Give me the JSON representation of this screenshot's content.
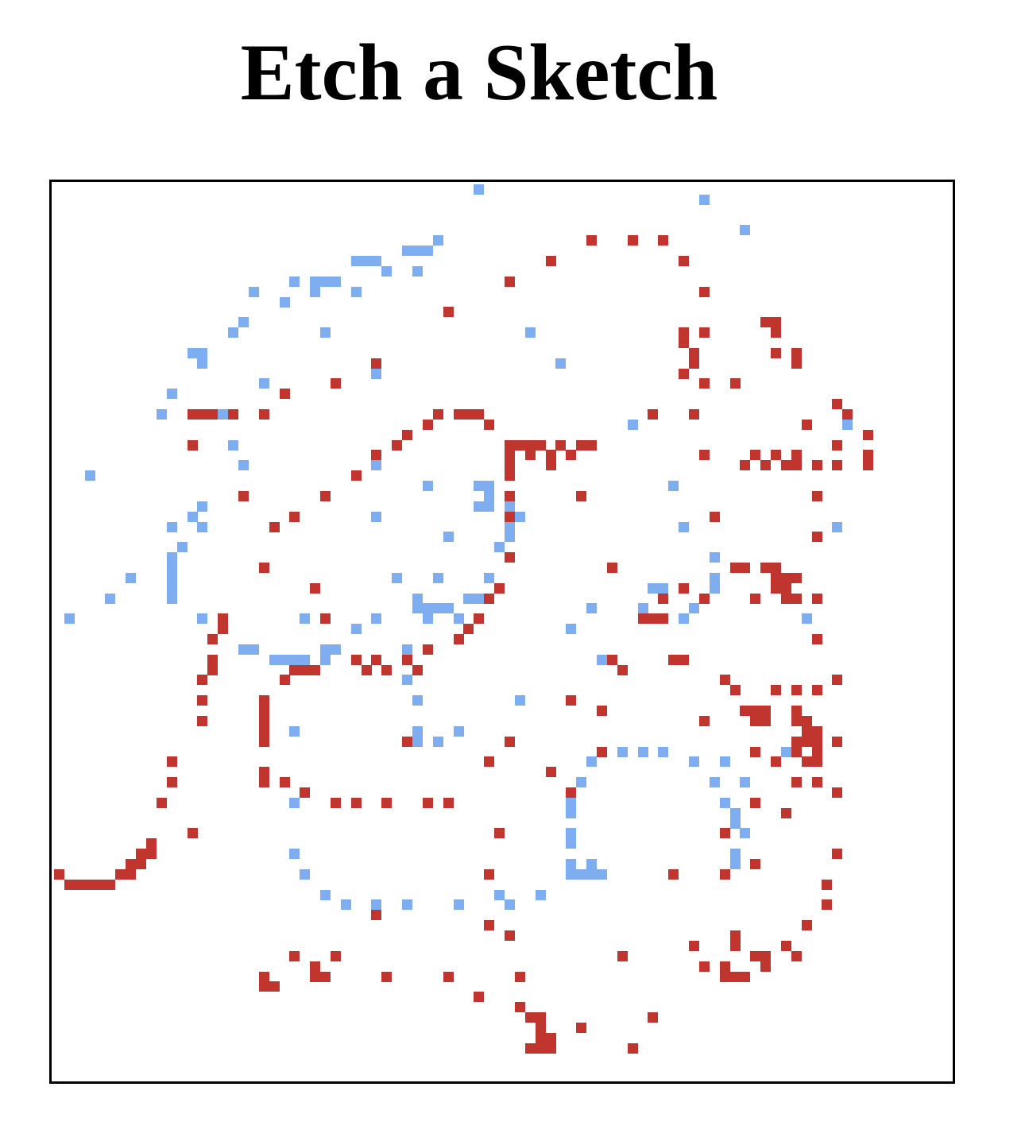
{
  "title": "Etch a Sketch",
  "grid": {
    "cols": 88,
    "rows": 88
  },
  "colors": {
    "red": "#c0352d",
    "blue": "#7eaef0",
    "board_background": "#ffffff",
    "board_border": "#000000"
  },
  "cells": {
    "blue": [
      [
        41,
        0
      ],
      [
        63,
        1
      ],
      [
        67,
        4
      ],
      [
        37,
        5
      ],
      [
        36,
        6
      ],
      [
        35,
        6
      ],
      [
        34,
        6
      ],
      [
        31,
        7
      ],
      [
        30,
        7
      ],
      [
        29,
        7
      ],
      [
        35,
        8
      ],
      [
        32,
        8
      ],
      [
        27,
        9
      ],
      [
        26,
        9
      ],
      [
        25,
        9
      ],
      [
        29,
        10
      ],
      [
        25,
        10
      ],
      [
        23,
        9
      ],
      [
        19,
        10
      ],
      [
        22,
        11
      ],
      [
        26,
        14
      ],
      [
        46,
        14
      ],
      [
        18,
        13
      ],
      [
        17,
        14
      ],
      [
        13,
        16
      ],
      [
        14,
        16
      ],
      [
        14,
        17
      ],
      [
        31,
        18
      ],
      [
        49,
        17
      ],
      [
        20,
        19
      ],
      [
        11,
        20
      ],
      [
        10,
        22
      ],
      [
        56,
        23
      ],
      [
        77,
        23
      ],
      [
        16,
        22
      ],
      [
        17,
        25
      ],
      [
        18,
        27
      ],
      [
        31,
        27
      ],
      [
        36,
        29
      ],
      [
        42,
        29
      ],
      [
        41,
        29
      ],
      [
        42,
        30
      ],
      [
        3,
        28
      ],
      [
        42,
        31
      ],
      [
        41,
        31
      ],
      [
        44,
        31
      ],
      [
        44,
        32
      ],
      [
        45,
        32
      ],
      [
        44,
        33
      ],
      [
        44,
        34
      ],
      [
        60,
        29
      ],
      [
        31,
        32
      ],
      [
        14,
        31
      ],
      [
        13,
        32
      ],
      [
        14,
        33
      ],
      [
        11,
        33
      ],
      [
        61,
        33
      ],
      [
        76,
        33
      ],
      [
        38,
        34
      ],
      [
        12,
        35
      ],
      [
        43,
        35
      ],
      [
        44,
        36
      ],
      [
        64,
        36
      ],
      [
        11,
        36
      ],
      [
        11,
        37
      ],
      [
        11,
        38
      ],
      [
        11,
        39
      ],
      [
        33,
        38
      ],
      [
        37,
        38
      ],
      [
        42,
        38
      ],
      [
        64,
        38
      ],
      [
        64,
        39
      ],
      [
        42,
        40
      ],
      [
        41,
        40
      ],
      [
        40,
        40
      ],
      [
        11,
        40
      ],
      [
        7,
        38
      ],
      [
        5,
        40
      ],
      [
        58,
        39
      ],
      [
        59,
        39
      ],
      [
        35,
        40
      ],
      [
        35,
        41
      ],
      [
        36,
        41
      ],
      [
        37,
        41
      ],
      [
        38,
        41
      ],
      [
        36,
        42
      ],
      [
        39,
        42
      ],
      [
        52,
        41
      ],
      [
        57,
        41
      ],
      [
        63,
        40
      ],
      [
        62,
        41
      ],
      [
        61,
        42
      ],
      [
        73,
        42
      ],
      [
        1,
        42
      ],
      [
        14,
        42
      ],
      [
        24,
        42
      ],
      [
        31,
        42
      ],
      [
        50,
        43
      ],
      [
        16,
        43
      ],
      [
        29,
        43
      ],
      [
        18,
        45
      ],
      [
        19,
        45
      ],
      [
        21,
        46
      ],
      [
        23,
        46
      ],
      [
        24,
        46
      ],
      [
        26,
        45
      ],
      [
        26,
        46
      ],
      [
        27,
        45
      ],
      [
        34,
        45
      ],
      [
        53,
        46
      ],
      [
        34,
        48
      ],
      [
        22,
        46
      ],
      [
        35,
        50
      ],
      [
        45,
        50
      ],
      [
        35,
        53
      ],
      [
        23,
        53
      ],
      [
        39,
        53
      ],
      [
        37,
        54
      ],
      [
        35,
        54
      ],
      [
        55,
        55
      ],
      [
        57,
        55
      ],
      [
        59,
        55
      ],
      [
        52,
        56
      ],
      [
        62,
        56
      ],
      [
        65,
        56
      ],
      [
        71,
        55
      ],
      [
        74,
        56
      ],
      [
        67,
        58
      ],
      [
        51,
        58
      ],
      [
        64,
        58
      ],
      [
        65,
        60
      ],
      [
        23,
        60
      ],
      [
        50,
        60
      ],
      [
        50,
        61
      ],
      [
        50,
        63
      ],
      [
        50,
        64
      ],
      [
        50,
        66
      ],
      [
        51,
        67
      ],
      [
        52,
        67
      ],
      [
        53,
        67
      ],
      [
        50,
        67
      ],
      [
        52,
        66
      ],
      [
        66,
        61
      ],
      [
        66,
        62
      ],
      [
        67,
        63
      ],
      [
        66,
        65
      ],
      [
        66,
        66
      ],
      [
        23,
        65
      ],
      [
        24,
        67
      ],
      [
        26,
        69
      ],
      [
        28,
        70
      ],
      [
        31,
        70
      ],
      [
        34,
        70
      ],
      [
        39,
        70
      ],
      [
        43,
        69
      ],
      [
        47,
        69
      ],
      [
        44,
        70
      ]
    ],
    "red": [
      [
        52,
        5
      ],
      [
        56,
        5
      ],
      [
        59,
        5
      ],
      [
        48,
        7
      ],
      [
        61,
        7
      ],
      [
        44,
        9
      ],
      [
        63,
        10
      ],
      [
        38,
        12
      ],
      [
        70,
        13
      ],
      [
        69,
        13
      ],
      [
        61,
        14
      ],
      [
        63,
        14
      ],
      [
        70,
        14
      ],
      [
        61,
        15
      ],
      [
        62,
        16
      ],
      [
        62,
        17
      ],
      [
        70,
        16
      ],
      [
        72,
        16
      ],
      [
        31,
        17
      ],
      [
        61,
        18
      ],
      [
        72,
        17
      ],
      [
        27,
        19
      ],
      [
        22,
        20
      ],
      [
        63,
        19
      ],
      [
        66,
        19
      ],
      [
        76,
        21
      ],
      [
        77,
        22
      ],
      [
        13,
        22
      ],
      [
        14,
        22
      ],
      [
        15,
        22
      ],
      [
        17,
        22
      ],
      [
        20,
        22
      ],
      [
        37,
        22
      ],
      [
        39,
        22
      ],
      [
        40,
        22
      ],
      [
        41,
        22
      ],
      [
        58,
        22
      ],
      [
        62,
        22
      ],
      [
        36,
        23
      ],
      [
        42,
        23
      ],
      [
        73,
        23
      ],
      [
        34,
        24
      ],
      [
        13,
        25
      ],
      [
        33,
        25
      ],
      [
        44,
        25
      ],
      [
        46,
        25
      ],
      [
        47,
        25
      ],
      [
        49,
        25
      ],
      [
        51,
        25
      ],
      [
        52,
        25
      ],
      [
        45,
        25
      ],
      [
        46,
        26
      ],
      [
        48,
        26
      ],
      [
        50,
        26
      ],
      [
        63,
        26
      ],
      [
        70,
        26
      ],
      [
        79,
        24
      ],
      [
        76,
        25
      ],
      [
        31,
        26
      ],
      [
        44,
        26
      ],
      [
        44,
        27
      ],
      [
        48,
        27
      ],
      [
        68,
        26
      ],
      [
        67,
        27
      ],
      [
        69,
        27
      ],
      [
        71,
        27
      ],
      [
        72,
        27
      ],
      [
        74,
        27
      ],
      [
        76,
        27
      ],
      [
        79,
        27
      ],
      [
        72,
        26
      ],
      [
        79,
        26
      ],
      [
        29,
        28
      ],
      [
        44,
        28
      ],
      [
        18,
        30
      ],
      [
        26,
        30
      ],
      [
        44,
        30
      ],
      [
        51,
        30
      ],
      [
        74,
        30
      ],
      [
        23,
        32
      ],
      [
        44,
        32
      ],
      [
        64,
        32
      ],
      [
        21,
        33
      ],
      [
        74,
        34
      ],
      [
        44,
        36
      ],
      [
        20,
        37
      ],
      [
        54,
        37
      ],
      [
        66,
        37
      ],
      [
        67,
        37
      ],
      [
        69,
        37
      ],
      [
        70,
        37
      ],
      [
        71,
        38
      ],
      [
        72,
        38
      ],
      [
        70,
        38
      ],
      [
        70,
        39
      ],
      [
        71,
        39
      ],
      [
        25,
        39
      ],
      [
        43,
        39
      ],
      [
        61,
        39
      ],
      [
        63,
        40
      ],
      [
        68,
        40
      ],
      [
        71,
        40
      ],
      [
        72,
        40
      ],
      [
        74,
        40
      ],
      [
        59,
        40
      ],
      [
        42,
        40
      ],
      [
        71,
        40
      ],
      [
        16,
        42
      ],
      [
        16,
        43
      ],
      [
        41,
        42
      ],
      [
        40,
        43
      ],
      [
        15,
        44
      ],
      [
        26,
        42
      ],
      [
        74,
        44
      ],
      [
        58,
        42
      ],
      [
        59,
        42
      ],
      [
        57,
        42
      ],
      [
        39,
        44
      ],
      [
        36,
        45
      ],
      [
        35,
        47
      ],
      [
        34,
        46
      ],
      [
        15,
        46
      ],
      [
        15,
        47
      ],
      [
        29,
        46
      ],
      [
        30,
        47
      ],
      [
        31,
        46
      ],
      [
        32,
        47
      ],
      [
        23,
        47
      ],
      [
        24,
        47
      ],
      [
        25,
        47
      ],
      [
        22,
        48
      ],
      [
        14,
        48
      ],
      [
        54,
        46
      ],
      [
        55,
        47
      ],
      [
        60,
        46
      ],
      [
        61,
        46
      ],
      [
        65,
        48
      ],
      [
        66,
        49
      ],
      [
        70,
        49
      ],
      [
        72,
        49
      ],
      [
        74,
        49
      ],
      [
        76,
        48
      ],
      [
        14,
        50
      ],
      [
        20,
        50
      ],
      [
        20,
        51
      ],
      [
        20,
        52
      ],
      [
        50,
        50
      ],
      [
        53,
        51
      ],
      [
        67,
        51
      ],
      [
        68,
        51
      ],
      [
        69,
        51
      ],
      [
        68,
        52
      ],
      [
        69,
        52
      ],
      [
        63,
        52
      ],
      [
        72,
        51
      ],
      [
        72,
        52
      ],
      [
        73,
        52
      ],
      [
        73,
        53
      ],
      [
        74,
        53
      ],
      [
        74,
        54
      ],
      [
        73,
        54
      ],
      [
        72,
        54
      ],
      [
        72,
        55
      ],
      [
        74,
        55
      ],
      [
        76,
        54
      ],
      [
        14,
        52
      ],
      [
        20,
        53
      ],
      [
        20,
        54
      ],
      [
        34,
        54
      ],
      [
        44,
        54
      ],
      [
        11,
        56
      ],
      [
        20,
        57
      ],
      [
        20,
        58
      ],
      [
        22,
        58
      ],
      [
        24,
        59
      ],
      [
        27,
        60
      ],
      [
        29,
        60
      ],
      [
        32,
        60
      ],
      [
        36,
        60
      ],
      [
        38,
        60
      ],
      [
        42,
        56
      ],
      [
        48,
        57
      ],
      [
        50,
        59
      ],
      [
        53,
        55
      ],
      [
        68,
        55
      ],
      [
        70,
        56
      ],
      [
        73,
        56
      ],
      [
        74,
        56
      ],
      [
        72,
        58
      ],
      [
        74,
        58
      ],
      [
        76,
        59
      ],
      [
        11,
        58
      ],
      [
        10,
        60
      ],
      [
        13,
        63
      ],
      [
        9,
        64
      ],
      [
        9,
        65
      ],
      [
        8,
        65
      ],
      [
        8,
        66
      ],
      [
        7,
        66
      ],
      [
        7,
        67
      ],
      [
        6,
        67
      ],
      [
        5,
        68
      ],
      [
        4,
        68
      ],
      [
        3,
        68
      ],
      [
        2,
        68
      ],
      [
        1,
        68
      ],
      [
        0,
        67
      ],
      [
        68,
        60
      ],
      [
        71,
        61
      ],
      [
        65,
        63
      ],
      [
        43,
        63
      ],
      [
        76,
        65
      ],
      [
        42,
        67
      ],
      [
        60,
        67
      ],
      [
        65,
        67
      ],
      [
        68,
        66
      ],
      [
        75,
        68
      ],
      [
        75,
        70
      ],
      [
        31,
        71
      ],
      [
        42,
        72
      ],
      [
        44,
        73
      ],
      [
        66,
        73
      ],
      [
        73,
        72
      ],
      [
        71,
        74
      ],
      [
        69,
        75
      ],
      [
        66,
        74
      ],
      [
        62,
        74
      ],
      [
        68,
        75
      ],
      [
        72,
        75
      ],
      [
        65,
        76
      ],
      [
        65,
        77
      ],
      [
        66,
        77
      ],
      [
        67,
        77
      ],
      [
        63,
        76
      ],
      [
        69,
        76
      ],
      [
        25,
        76
      ],
      [
        23,
        75
      ],
      [
        27,
        75
      ],
      [
        25,
        77
      ],
      [
        26,
        77
      ],
      [
        20,
        77
      ],
      [
        20,
        78
      ],
      [
        21,
        78
      ],
      [
        32,
        77
      ],
      [
        38,
        77
      ],
      [
        45,
        77
      ],
      [
        55,
        75
      ],
      [
        41,
        79
      ],
      [
        45,
        80
      ],
      [
        46,
        81
      ],
      [
        47,
        81
      ],
      [
        47,
        82
      ],
      [
        47,
        83
      ],
      [
        48,
        83
      ],
      [
        48,
        84
      ],
      [
        47,
        84
      ],
      [
        46,
        84
      ],
      [
        51,
        82
      ],
      [
        58,
        81
      ],
      [
        56,
        84
      ]
    ]
  }
}
